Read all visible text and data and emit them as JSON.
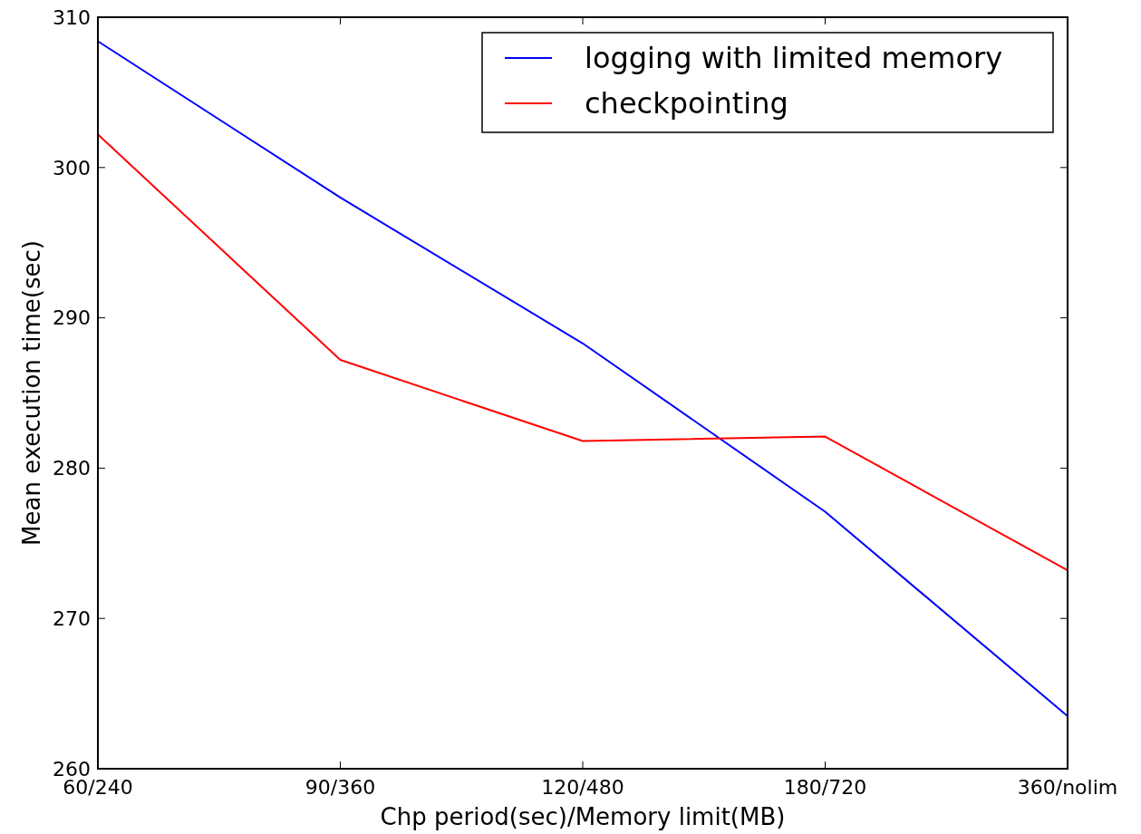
{
  "chart_data": {
    "type": "line",
    "xlabel": "Chp period(sec)/Memory limit(MB)",
    "ylabel": "Mean execution time(sec)",
    "categories": [
      "60/240",
      "90/360",
      "120/480",
      "180/720",
      "360/nolim"
    ],
    "ylim": [
      260,
      310
    ],
    "yticks": [
      260,
      270,
      280,
      290,
      300,
      310
    ],
    "series": [
      {
        "name": "logging with limited memory",
        "color": "#0000ff",
        "values": [
          308.4,
          298.0,
          288.3,
          277.1,
          263.5
        ]
      },
      {
        "name": "checkpointing",
        "color": "#ff0000",
        "values": [
          302.2,
          287.2,
          281.8,
          282.1,
          273.2
        ]
      }
    ],
    "legend": "top right",
    "grid": false,
    "marker": "none",
    "line_style": "solid"
  }
}
